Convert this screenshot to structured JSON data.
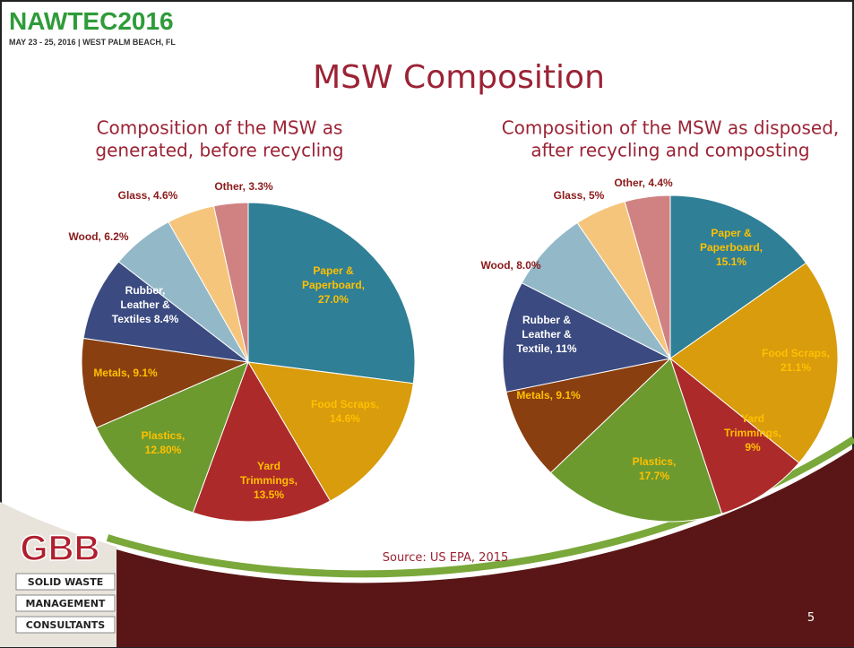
{
  "header": {
    "event": "NAWTEC2016",
    "event_details": "MAY 23 - 25, 2016 | WEST PALM BEACH, FL",
    "title": "MSW Composition"
  },
  "chart_data": [
    {
      "type": "pie",
      "title": "Composition of the MSW as\ngenerated, before recycling",
      "values": [
        27.0,
        14.6,
        13.5,
        12.8,
        9.1,
        8.4,
        6.2,
        4.6,
        3.3
      ],
      "value_labels": [
        "Paper &\nPaperboard,\n27.0%",
        "Food Scraps,\n14.6%",
        "Yard\nTrimmings,\n13.5%",
        "Plastics,\n12.80%",
        "Metals, 9.1%",
        "Rubber,\nLeather &\nTextiles 8.4%",
        "Wood, 6.2%",
        "Glass, 4.6%",
        "Other, 3.3%"
      ],
      "colors": [
        "#2f7f96",
        "#d89c0c",
        "#ad2a2a",
        "#6c9a2f",
        "#8a3f10",
        "#3b4a80",
        "#93b9c9",
        "#f6c57c",
        "#d08282"
      ]
    },
    {
      "type": "pie",
      "title": "Composition of the MSW as disposed,\nafter recycling and composting",
      "values": [
        15.1,
        21.1,
        9,
        17.7,
        9.1,
        11,
        8.0,
        5,
        4.4
      ],
      "value_labels": [
        "Paper &\nPaperboard,\n15.1%",
        "Food Scraps,\n21.1%",
        "Yard\nTrimmings,\n9%",
        "Plastics,\n17.7%",
        "Metals, 9.1%",
        "Rubber &\nLeather &\nTextile, 11%",
        "Wood, 8.0%",
        "Glass, 5%",
        "Other, 4.4%"
      ],
      "colors": [
        "#2f7f96",
        "#d89c0c",
        "#ad2a2a",
        "#6c9a2f",
        "#8a3f10",
        "#3b4a80",
        "#93b9c9",
        "#f6c57c",
        "#d08282"
      ]
    }
  ],
  "source": "Source: US EPA, 2015",
  "page_number": "5",
  "logo": {
    "mark": "GBB",
    "lines": [
      "SOLID WASTE",
      "MANAGEMENT",
      "CONSULTANTS"
    ]
  }
}
